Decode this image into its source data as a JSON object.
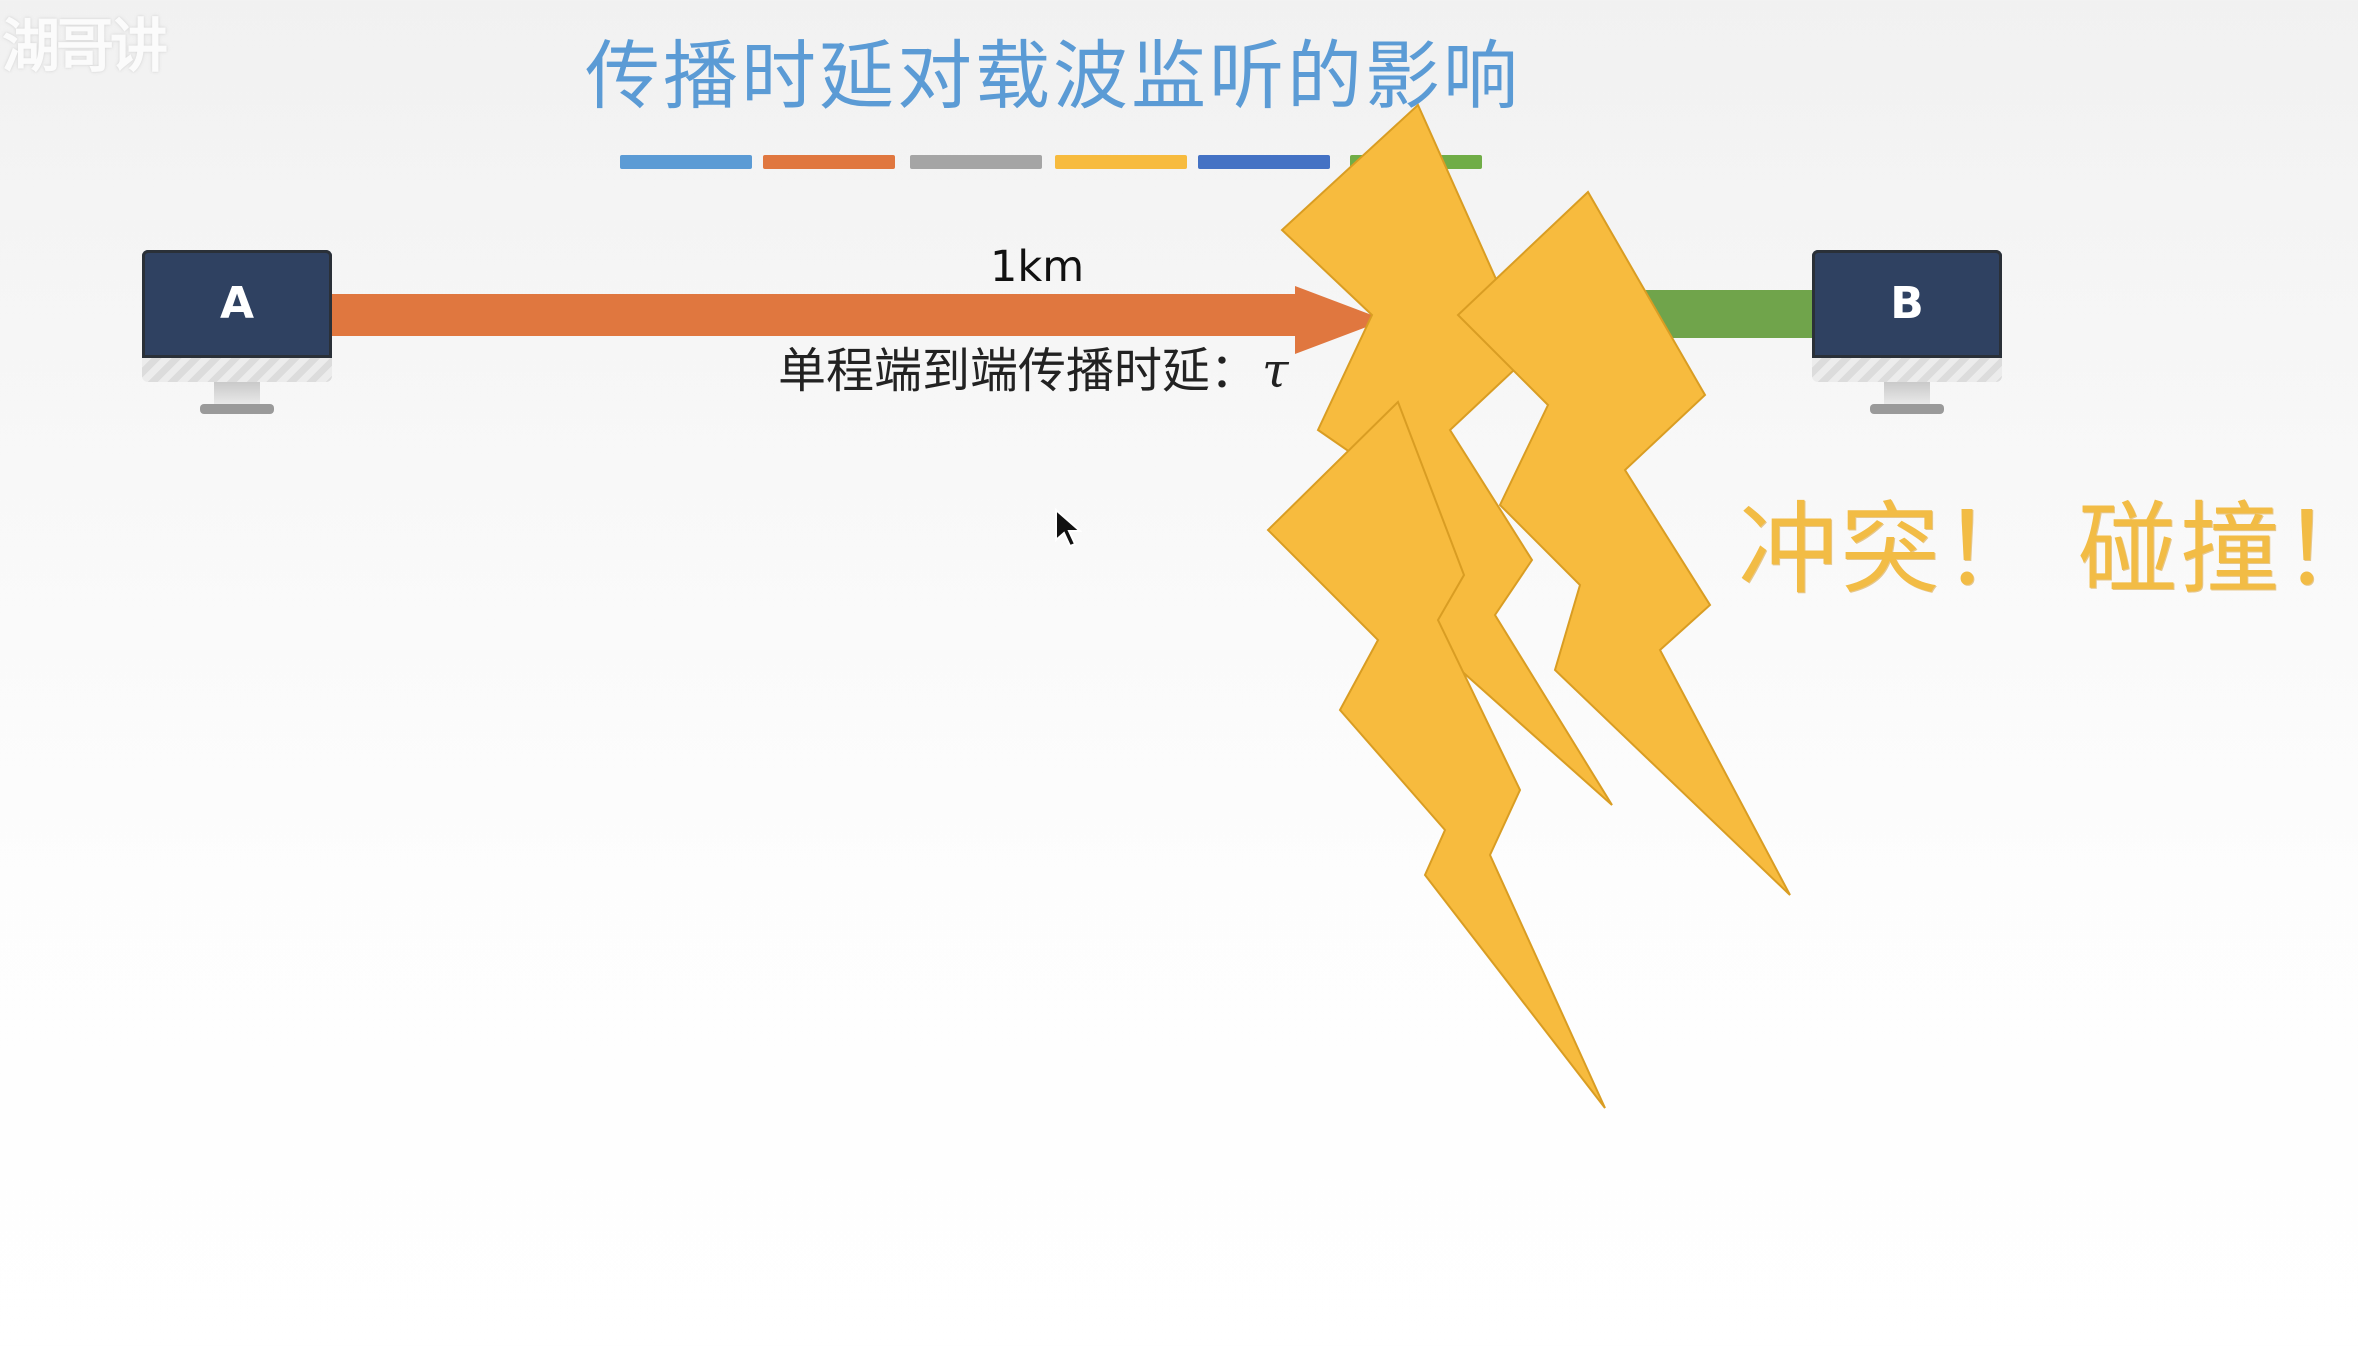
{
  "watermark": "湖哥讲",
  "title": "传播时延对载波监听的影响",
  "distance_label": "1km",
  "delay_label": "单程端到端传播时延：",
  "delay_symbol": "τ",
  "collision_text": "冲突！ 碰撞！",
  "nodes": [
    {
      "label": "A"
    },
    {
      "label": "B"
    }
  ],
  "colors": {
    "title": "#5b9bd5",
    "orange_signal": "#e0773f",
    "green_signal": "#70a44b",
    "lightning": "#f7bb3e",
    "collision_text": "#f2bc45",
    "screen": "#2f4161"
  },
  "stripe_colors": [
    "#5b9bd5",
    "#e0773f",
    "#a5a5a5",
    "#f7bb3e",
    "#4472c4",
    "#70ad47"
  ],
  "icons": {
    "left_computer": "monitor-icon",
    "right_computer": "monitor-icon",
    "collision": "lightning-bolt-icon",
    "pointer": "mouse-pointer-icon"
  }
}
